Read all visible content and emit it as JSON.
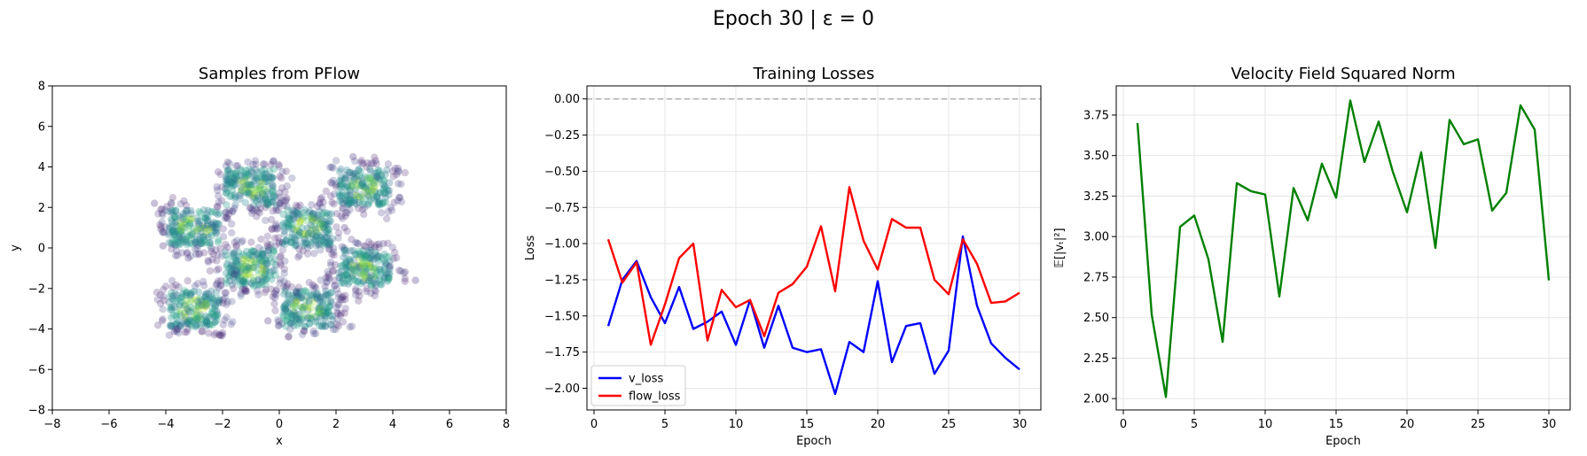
{
  "figure": {
    "suptitle": "Epoch 30 | ε = 0"
  },
  "chart_data": [
    {
      "type": "scatter",
      "title": "Samples from PFlow",
      "xlabel": "x",
      "ylabel": "y",
      "xlim": [
        -8,
        8
      ],
      "ylim": [
        -8,
        8
      ],
      "xticks": [
        -8,
        -6,
        -4,
        -2,
        0,
        2,
        4,
        6,
        8
      ],
      "yticks": [
        -8,
        -6,
        -4,
        -2,
        0,
        2,
        4,
        6,
        8
      ],
      "grid": false,
      "colormap": "viridis",
      "point_alpha": 0.25,
      "clusters": [
        {
          "x_range": [
            -2,
            0
          ],
          "y_range": [
            2,
            4
          ]
        },
        {
          "x_range": [
            2,
            4
          ],
          "y_range": [
            2,
            4
          ]
        },
        {
          "x_range": [
            -4,
            -2
          ],
          "y_range": [
            0,
            2
          ]
        },
        {
          "x_range": [
            0,
            2
          ],
          "y_range": [
            0,
            2
          ]
        },
        {
          "x_range": [
            -2,
            0
          ],
          "y_range": [
            -2,
            0
          ]
        },
        {
          "x_range": [
            2,
            4
          ],
          "y_range": [
            -2,
            0
          ]
        },
        {
          "x_range": [
            -4,
            -2
          ],
          "y_range": [
            -4,
            -2
          ]
        },
        {
          "x_range": [
            0,
            2
          ],
          "y_range": [
            -4,
            -2
          ]
        }
      ]
    },
    {
      "type": "line",
      "title": "Training Losses",
      "xlabel": "Epoch",
      "ylabel": "Loss",
      "xlim": [
        -0.5,
        31.5
      ],
      "ylim": [
        -2.15,
        0.09
      ],
      "xticks": [
        0,
        5,
        10,
        15,
        20,
        25,
        30
      ],
      "yticks": [
        -2.0,
        -1.75,
        -1.5,
        -1.25,
        -1.0,
        -0.75,
        -0.5,
        -0.25,
        0.0
      ],
      "ytick_labels": [
        "−2.00",
        "−1.75",
        "−1.50",
        "−1.25",
        "−1.00",
        "−0.75",
        "−0.50",
        "−0.25",
        "0.00"
      ],
      "grid": true,
      "hline": {
        "y": 0.0,
        "style": "dashed",
        "color": "#b0b0b0"
      },
      "legend_position": "lower-left",
      "x": [
        1,
        2,
        3,
        4,
        5,
        6,
        7,
        8,
        9,
        10,
        11,
        12,
        13,
        14,
        15,
        16,
        17,
        18,
        19,
        20,
        21,
        22,
        23,
        24,
        25,
        26,
        27,
        28,
        29,
        30
      ],
      "series": [
        {
          "name": "v_loss",
          "color": "#0000ff",
          "values": [
            -1.57,
            -1.25,
            -1.12,
            -1.37,
            -1.55,
            -1.3,
            -1.59,
            -1.54,
            -1.47,
            -1.7,
            -1.39,
            -1.72,
            -1.43,
            -1.72,
            -1.75,
            -1.73,
            -2.04,
            -1.68,
            -1.75,
            -1.26,
            -1.82,
            -1.57,
            -1.55,
            -1.9,
            -1.74,
            -0.95,
            -1.43,
            -1.69,
            -1.79,
            -1.87
          ]
        },
        {
          "name": "flow_loss",
          "color": "#ff0000",
          "values": [
            -0.97,
            -1.27,
            -1.13,
            -1.7,
            -1.42,
            -1.1,
            -1.0,
            -1.67,
            -1.32,
            -1.44,
            -1.39,
            -1.64,
            -1.34,
            -1.28,
            -1.16,
            -0.88,
            -1.33,
            -0.61,
            -0.98,
            -1.18,
            -0.83,
            -0.89,
            -0.89,
            -1.25,
            -1.35,
            -0.97,
            -1.14,
            -1.41,
            -1.4,
            -1.34
          ]
        }
      ]
    },
    {
      "type": "line",
      "title": "Velocity Field Squared Norm",
      "xlabel": "Epoch",
      "ylabel": "𝔼[|vₜ|²]",
      "xlim": [
        -0.5,
        31.5
      ],
      "ylim": [
        1.93,
        3.93
      ],
      "xticks": [
        0,
        5,
        10,
        15,
        20,
        25,
        30
      ],
      "yticks": [
        2.0,
        2.25,
        2.5,
        2.75,
        3.0,
        3.25,
        3.5,
        3.75
      ],
      "ytick_labels": [
        "2.00",
        "2.25",
        "2.50",
        "2.75",
        "3.00",
        "3.25",
        "3.50",
        "3.75"
      ],
      "grid": true,
      "x": [
        1,
        2,
        3,
        4,
        5,
        6,
        7,
        8,
        9,
        10,
        11,
        12,
        13,
        14,
        15,
        16,
        17,
        18,
        19,
        20,
        21,
        22,
        23,
        24,
        25,
        26,
        27,
        28,
        29,
        30
      ],
      "series": [
        {
          "color": "#008000",
          "values": [
            3.7,
            2.52,
            2.01,
            3.06,
            3.13,
            2.86,
            2.35,
            3.33,
            3.28,
            3.26,
            2.63,
            3.3,
            3.1,
            3.45,
            3.24,
            3.84,
            3.46,
            3.71,
            3.4,
            3.15,
            3.52,
            2.93,
            3.72,
            3.57,
            3.6,
            3.16,
            3.27,
            3.81,
            3.66,
            2.73
          ]
        }
      ]
    }
  ]
}
